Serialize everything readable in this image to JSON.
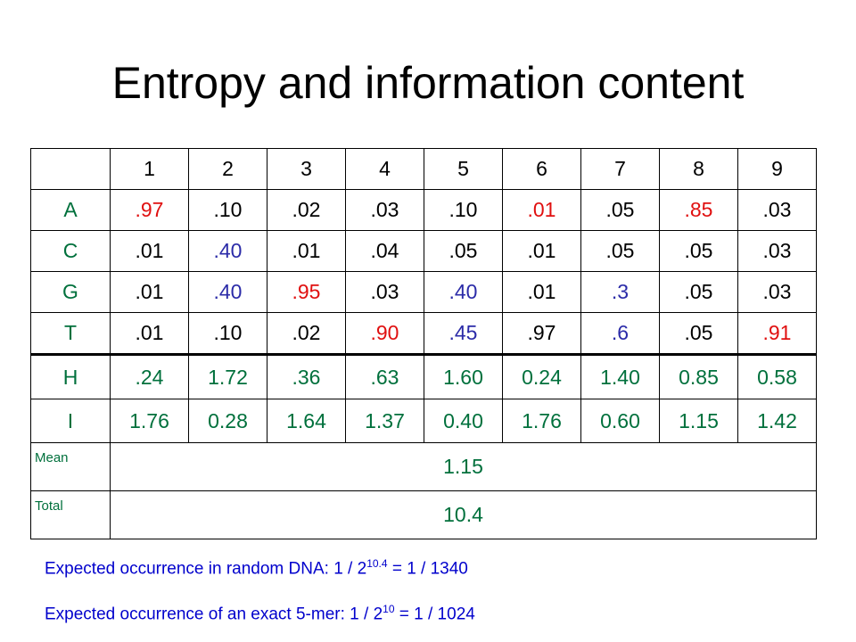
{
  "title": "Entropy and information content",
  "colors": {
    "label": "#00703c",
    "highlight": "#e01010",
    "secondary": "#2b2ba8",
    "plain": "#000000",
    "note": "#0000cc"
  },
  "table": {
    "columns": [
      "1",
      "2",
      "3",
      "4",
      "5",
      "6",
      "7",
      "8",
      "9"
    ],
    "rows": [
      {
        "label": "A",
        "cells": [
          {
            "v": ".97",
            "c": "red"
          },
          {
            "v": ".10",
            "c": "blk"
          },
          {
            "v": ".02",
            "c": "blk"
          },
          {
            "v": ".03",
            "c": "blk"
          },
          {
            "v": ".10",
            "c": "blk"
          },
          {
            "v": ".01",
            "c": "red"
          },
          {
            "v": ".05",
            "c": "blk"
          },
          {
            "v": ".85",
            "c": "red"
          },
          {
            "v": ".03",
            "c": "blk"
          }
        ]
      },
      {
        "label": "C",
        "cells": [
          {
            "v": ".01",
            "c": "blk"
          },
          {
            "v": ".40",
            "c": "blue"
          },
          {
            "v": ".01",
            "c": "blk"
          },
          {
            "v": ".04",
            "c": "blk"
          },
          {
            "v": ".05",
            "c": "blk"
          },
          {
            "v": ".01",
            "c": "blk"
          },
          {
            "v": ".05",
            "c": "blk"
          },
          {
            "v": ".05",
            "c": "blk"
          },
          {
            "v": ".03",
            "c": "blk"
          }
        ]
      },
      {
        "label": "G",
        "cells": [
          {
            "v": ".01",
            "c": "blk"
          },
          {
            "v": ".40",
            "c": "blue"
          },
          {
            "v": ".95",
            "c": "red"
          },
          {
            "v": ".03",
            "c": "blk"
          },
          {
            "v": ".40",
            "c": "blue"
          },
          {
            "v": ".01",
            "c": "blk"
          },
          {
            "v": ".3",
            "c": "blue"
          },
          {
            "v": ".05",
            "c": "blk"
          },
          {
            "v": ".03",
            "c": "blk"
          }
        ]
      },
      {
        "label": "T",
        "cells": [
          {
            "v": ".01",
            "c": "blk"
          },
          {
            "v": ".10",
            "c": "blk"
          },
          {
            "v": ".02",
            "c": "blk"
          },
          {
            "v": ".90",
            "c": "red"
          },
          {
            "v": ".45",
            "c": "blue"
          },
          {
            "v": ".97",
            "c": "blk"
          },
          {
            "v": ".6",
            "c": "blue"
          },
          {
            "v": ".05",
            "c": "blk"
          },
          {
            "v": ".91",
            "c": "red"
          }
        ]
      }
    ],
    "metric_rows": [
      {
        "label": "H",
        "cells": [
          ".24",
          "1.72",
          ".36",
          ".63",
          "1.60",
          "0.24",
          "1.40",
          "0.85",
          "0.58"
        ]
      },
      {
        "label": "I",
        "cells": [
          "1.76",
          "0.28",
          "1.64",
          "1.37",
          "0.40",
          "1.76",
          "0.60",
          "1.15",
          "1.42"
        ]
      }
    ],
    "mean": {
      "label": "Mean",
      "value": "1.15"
    },
    "total": {
      "label": "Total",
      "value": "10.4"
    }
  },
  "notes": [
    {
      "prefix": "Expected occurrence in random DNA: 1 / 2",
      "sup": "10.4",
      "suffix": " = 1 / 1340"
    },
    {
      "prefix": "Expected occurrence of an exact 5-mer: 1 / 2",
      "sup": "10",
      "suffix": " = 1 / 1024"
    }
  ]
}
